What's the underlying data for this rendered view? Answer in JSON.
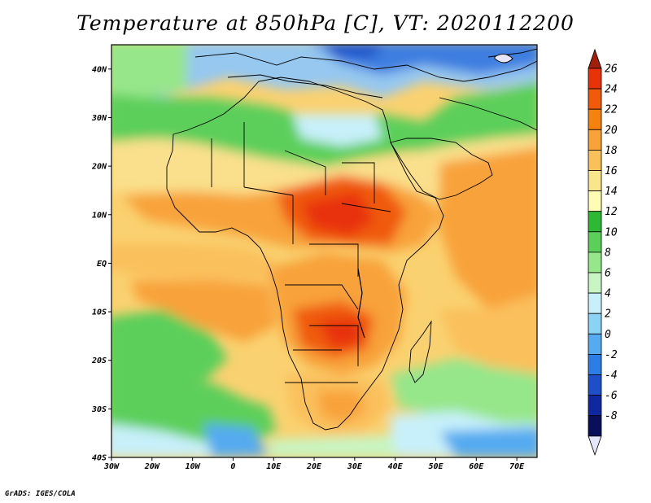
{
  "title": "Temperature at 850hPa [C], VT: 2020112200",
  "footer": "GrADS: IGES/COLA",
  "map": {
    "lat_labels": [
      "40N",
      "30N",
      "20N",
      "10N",
      "EQ",
      "10S",
      "20S",
      "30S",
      "40S"
    ],
    "lon_labels": [
      "30W",
      "20W",
      "10W",
      "0",
      "10E",
      "20E",
      "30E",
      "40E",
      "50E",
      "60E",
      "70E"
    ],
    "lon_range": [
      -30,
      75
    ],
    "lat_range": [
      -40,
      45
    ]
  },
  "colorbar": {
    "labels": [
      "26",
      "24",
      "22",
      "20",
      "18",
      "16",
      "14",
      "12",
      "10",
      "8",
      "6",
      "4",
      "2",
      "0",
      "-2",
      "-4",
      "-6",
      "-8"
    ],
    "colors": [
      "#a01e0a",
      "#e8320a",
      "#f05a0a",
      "#f5820f",
      "#f8a23a",
      "#fac05c",
      "#f9e68c",
      "#fffcb4",
      "#2eb836",
      "#5ccf5a",
      "#96e68a",
      "#c8f5c3",
      "#c8f0fa",
      "#8cd2f5",
      "#55aaf0",
      "#2d7de6",
      "#1e4fc8",
      "#0f28a0",
      "#0a0f5a",
      "#e6e6fa"
    ]
  }
}
